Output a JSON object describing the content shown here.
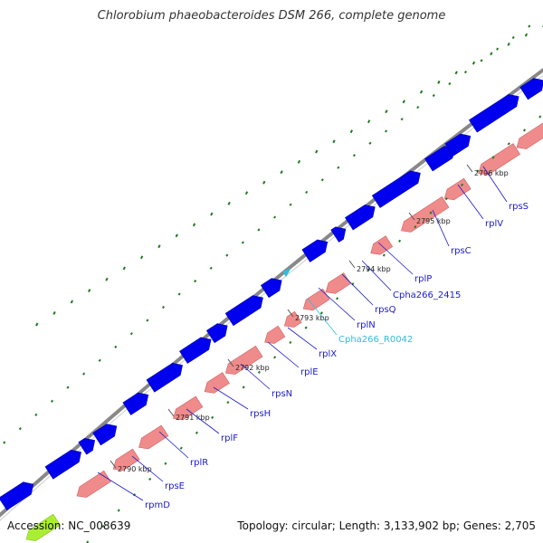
{
  "title": "Chlorobium phaeobacteroides DSM 266, complete genome",
  "accession": "Accession: NC_008639",
  "summary": "Topology: circular; Length: 3,133,902 bp; Genes: 2,705",
  "colors": {
    "backbone": "#888888",
    "forward_gene": "#0000ee",
    "reverse_gene": "#f08b8b",
    "selected_gene": "#aaee33",
    "label": "#1a1acc",
    "rna_label": "#33bbdd",
    "gc_marks": "#1e7a1e"
  },
  "ticks": [
    "2790 kbp",
    "2791 kbp",
    "2792 kbp",
    "2793 kbp",
    "2794 kbp",
    "2795 kbp",
    "2796 kbp"
  ],
  "gene_labels": [
    {
      "name": "rpmD",
      "type": "gene"
    },
    {
      "name": "rpsE",
      "type": "gene"
    },
    {
      "name": "rplR",
      "type": "gene"
    },
    {
      "name": "rplF",
      "type": "gene"
    },
    {
      "name": "rpsH",
      "type": "gene"
    },
    {
      "name": "rpsN",
      "type": "gene"
    },
    {
      "name": "rplE",
      "type": "gene"
    },
    {
      "name": "rplX",
      "type": "gene"
    },
    {
      "name": "Cpha266_R0042",
      "type": "rna"
    },
    {
      "name": "rplN",
      "type": "gene"
    },
    {
      "name": "rpsQ",
      "type": "gene"
    },
    {
      "name": "Cpha266_2415",
      "type": "gene"
    },
    {
      "name": "rplP",
      "type": "gene"
    },
    {
      "name": "rpsC",
      "type": "gene"
    },
    {
      "name": "rplV",
      "type": "gene"
    },
    {
      "name": "rpsS",
      "type": "gene"
    }
  ]
}
